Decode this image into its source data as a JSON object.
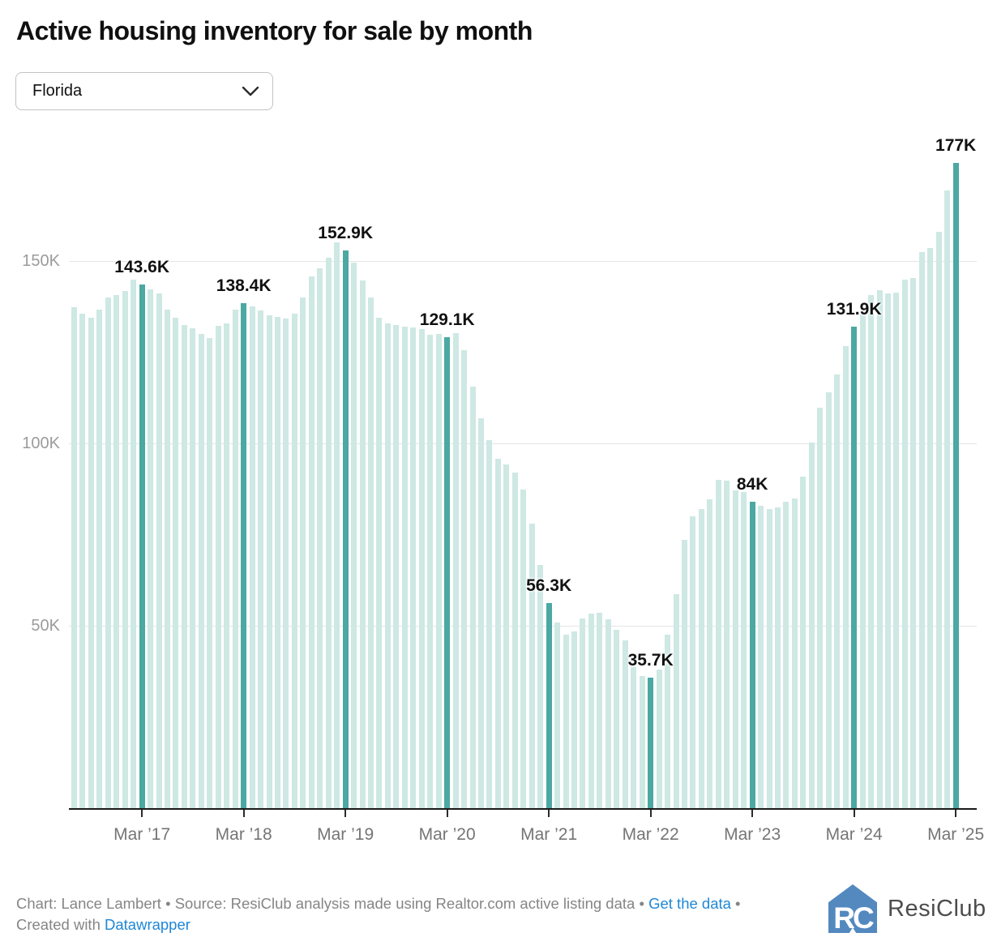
{
  "title": "Active housing inventory for sale by month",
  "dropdown": {
    "value": "Florida",
    "chevron_icon": "chevron-down"
  },
  "colors": {
    "bar_light": "#cee8e4",
    "bar_highlight": "#4ba8a2",
    "gridline": "#e6e6e6",
    "axis": "#1a1a1a",
    "link_blue": "#1e87d6",
    "logo_blue": "#5389bf"
  },
  "chart_data": {
    "type": "bar",
    "title": "Active housing inventory for sale by month",
    "unit": "thousands of listings",
    "ylim": [
      0,
      190
    ],
    "grid": "horizontal",
    "y_ticks": [
      {
        "value": 150,
        "label": "150K"
      },
      {
        "value": 100,
        "label": "100K"
      },
      {
        "value": 50,
        "label": "50K"
      }
    ],
    "x_ticks": [
      {
        "index": 8,
        "label": "Mar ’17"
      },
      {
        "index": 20,
        "label": "Mar ’18"
      },
      {
        "index": 32,
        "label": "Mar ’19"
      },
      {
        "index": 44,
        "label": "Mar ’20"
      },
      {
        "index": 56,
        "label": "Mar ’21"
      },
      {
        "index": 68,
        "label": "Mar ’22"
      },
      {
        "index": 80,
        "label": "Mar ’23"
      },
      {
        "index": 92,
        "label": "Mar ’24"
      },
      {
        "index": 104,
        "label": "Mar ’25"
      }
    ],
    "highlights": [
      {
        "index": 8,
        "label": "143.6K"
      },
      {
        "index": 20,
        "label": "138.4K"
      },
      {
        "index": 32,
        "label": "152.9K"
      },
      {
        "index": 44,
        "label": "129.1K"
      },
      {
        "index": 56,
        "label": "56.3K"
      },
      {
        "index": 68,
        "label": "35.7K"
      },
      {
        "index": 80,
        "label": "84K"
      },
      {
        "index": 92,
        "label": "131.9K"
      },
      {
        "index": 104,
        "label": "177K"
      }
    ],
    "months": [
      "Jul 2016",
      "Aug 2016",
      "Sep 2016",
      "Oct 2016",
      "Nov 2016",
      "Dec 2016",
      "Jan 2017",
      "Feb 2017",
      "Mar 2017",
      "Apr 2017",
      "May 2017",
      "Jun 2017",
      "Jul 2017",
      "Aug 2017",
      "Sep 2017",
      "Oct 2017",
      "Nov 2017",
      "Dec 2017",
      "Jan 2018",
      "Feb 2018",
      "Mar 2018",
      "Apr 2018",
      "May 2018",
      "Jun 2018",
      "Jul 2018",
      "Aug 2018",
      "Sep 2018",
      "Oct 2018",
      "Nov 2018",
      "Dec 2018",
      "Jan 2019",
      "Feb 2019",
      "Mar 2019",
      "Apr 2019",
      "May 2019",
      "Jun 2019",
      "Jul 2019",
      "Aug 2019",
      "Sep 2019",
      "Oct 2019",
      "Nov 2019",
      "Dec 2019",
      "Jan 2020",
      "Feb 2020",
      "Mar 2020",
      "Apr 2020",
      "May 2020",
      "Jun 2020",
      "Jul 2020",
      "Aug 2020",
      "Sep 2020",
      "Oct 2020",
      "Nov 2020",
      "Dec 2020",
      "Jan 2021",
      "Feb 2021",
      "Mar 2021",
      "Apr 2021",
      "May 2021",
      "Jun 2021",
      "Jul 2021",
      "Aug 2021",
      "Sep 2021",
      "Oct 2021",
      "Nov 2021",
      "Dec 2021",
      "Jan 2022",
      "Feb 2022",
      "Mar 2022",
      "Apr 2022",
      "May 2022",
      "Jun 2022",
      "Jul 2022",
      "Aug 2022",
      "Sep 2022",
      "Oct 2022",
      "Nov 2022",
      "Dec 2022",
      "Jan 2023",
      "Feb 2023",
      "Mar 2023",
      "Apr 2023",
      "May 2023",
      "Jun 2023",
      "Jul 2023",
      "Aug 2023",
      "Sep 2023",
      "Oct 2023",
      "Nov 2023",
      "Dec 2023",
      "Jan 2024",
      "Feb 2024",
      "Mar 2024",
      "Apr 2024",
      "May 2024",
      "Jun 2024",
      "Jul 2024",
      "Aug 2024",
      "Sep 2024",
      "Oct 2024",
      "Nov 2024",
      "Dec 2024",
      "Jan 2025",
      "Feb 2025",
      "Mar 2025"
    ],
    "values": [
      137.3,
      135.6,
      134.4,
      136.7,
      139.9,
      140.6,
      141.8,
      145.0,
      143.6,
      142.3,
      141.2,
      136.7,
      134.4,
      132.5,
      131.6,
      130.1,
      128.8,
      132.3,
      132.8,
      136.7,
      138.4,
      137.5,
      136.5,
      135.1,
      134.7,
      134.2,
      135.6,
      140.1,
      145.8,
      148.1,
      150.8,
      155.2,
      152.9,
      149.6,
      144.7,
      140.1,
      134.5,
      133.0,
      132.5,
      132.0,
      131.7,
      131.3,
      129.7,
      129.9,
      129.1,
      130.3,
      125.5,
      115.5,
      106.9,
      100.9,
      95.8,
      94.2,
      91.9,
      87.3,
      77.9,
      66.6,
      56.3,
      51.0,
      47.5,
      48.4,
      52.1,
      53.4,
      53.6,
      51.8,
      49.0,
      45.9,
      38.6,
      36.2,
      35.7,
      38.1,
      47.6,
      58.6,
      73.6,
      79.9,
      82.1,
      84.7,
      90.0,
      89.7,
      87.1,
      86.6,
      84.0,
      82.9,
      82.1,
      82.5,
      84.1,
      85.0,
      91.0,
      100.2,
      109.8,
      114.0,
      119.0,
      126.6,
      131.9,
      135.5,
      140.7,
      142.0,
      141.1,
      141.4,
      144.8,
      145.4,
      152.4,
      153.6,
      157.9,
      169.4,
      177.0
    ]
  },
  "footer": {
    "credit": "Chart: Lance Lambert",
    "sep1": " • ",
    "source": "Source: ResiClub analysis made using Realtor.com active listing data",
    "sep2": " • ",
    "link_get_data": "Get the data",
    "sep3": " • ",
    "created_with": "Created with ",
    "link_datawrapper": "Datawrapper"
  },
  "logo": {
    "monogram": "RC",
    "name": "ResiClub",
    "icon": "resiclub-house-icon"
  }
}
